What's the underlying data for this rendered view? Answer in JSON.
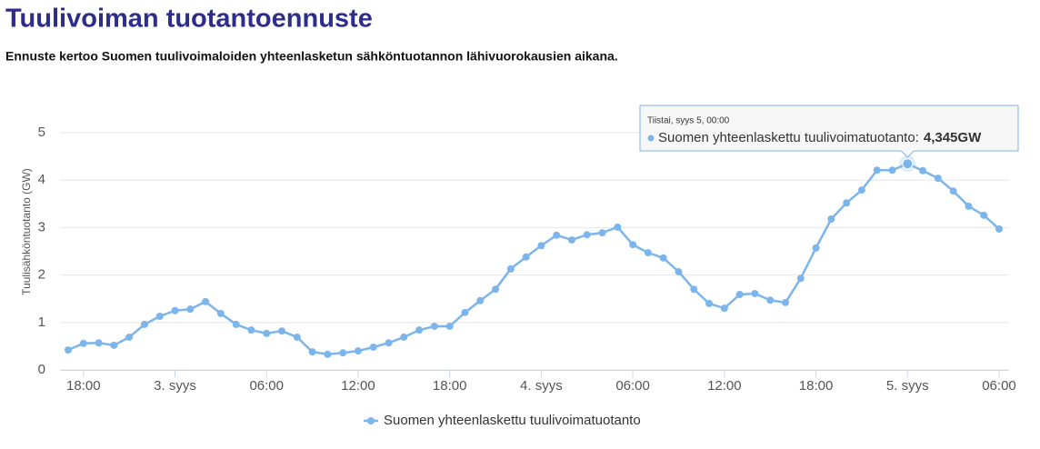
{
  "chart_data": {
    "type": "line",
    "title": "Tuulivoiman tuotantoennuste",
    "subtitle": "Ennuste kertoo Suomen tuulivoimaloiden yhteenlasketun sähköntuotannon lähivuorokausien aikana.",
    "y_label": "Tuulisähköntuotanto (GW)",
    "categories": [
      null,
      "18:00",
      null,
      null,
      null,
      null,
      null,
      "3. syys",
      null,
      null,
      null,
      null,
      null,
      "06:00",
      null,
      null,
      null,
      null,
      null,
      "12:00",
      null,
      null,
      null,
      null,
      null,
      "18:00",
      null,
      null,
      null,
      null,
      null,
      "4. syys",
      null,
      null,
      null,
      null,
      null,
      "06:00",
      null,
      null,
      null,
      null,
      null,
      "12:00",
      null,
      null,
      null,
      null,
      null,
      "18:00",
      null,
      null,
      null,
      null,
      null,
      "5. syys",
      null,
      null,
      null,
      null,
      null,
      "06:00"
    ],
    "series": [
      {
        "name": "Suomen yhteenlaskettu tuulivoimatuotanto",
        "color": "#7cb5ec",
        "values": [
          0.42,
          0.56,
          0.57,
          0.52,
          0.69,
          0.96,
          1.13,
          1.25,
          1.28,
          1.44,
          1.19,
          0.96,
          0.84,
          0.77,
          0.82,
          0.69,
          0.38,
          0.33,
          0.36,
          0.4,
          0.48,
          0.57,
          0.69,
          0.84,
          0.92,
          0.92,
          1.21,
          1.46,
          1.7,
          2.13,
          2.38,
          2.62,
          2.84,
          2.74,
          2.85,
          2.89,
          3.01,
          2.64,
          2.47,
          2.36,
          2.07,
          1.7,
          1.4,
          1.3,
          1.59,
          1.61,
          1.47,
          1.42,
          1.93,
          2.57,
          3.18,
          3.52,
          3.79,
          4.21,
          4.21,
          4.345,
          4.2,
          4.04,
          3.77,
          3.45,
          3.26,
          2.97
        ],
        "value_labels": [
          null,
          null,
          null,
          null,
          null,
          null,
          null,
          null,
          null,
          null,
          null,
          null,
          null,
          null,
          null,
          null,
          null,
          null,
          null,
          null,
          null,
          null,
          null,
          null,
          null,
          null,
          null,
          null,
          null,
          null,
          null,
          null,
          null,
          null,
          null,
          null,
          null,
          null,
          null,
          null,
          null,
          null,
          null,
          null,
          null,
          null,
          null,
          null,
          null,
          null,
          null,
          null,
          null,
          null,
          null,
          "4,345GW",
          null,
          null,
          null,
          null,
          null,
          null
        ]
      }
    ],
    "tooltip": {
      "title": "Tiistai, syys 5, 00:00",
      "label": "Suomen yhteenlaskettu tuulivoimatuotanto:"
    },
    "ylim": [
      0,
      5
    ],
    "yticks": [
      0,
      1,
      2,
      3,
      4,
      5
    ],
    "grid": true
  }
}
